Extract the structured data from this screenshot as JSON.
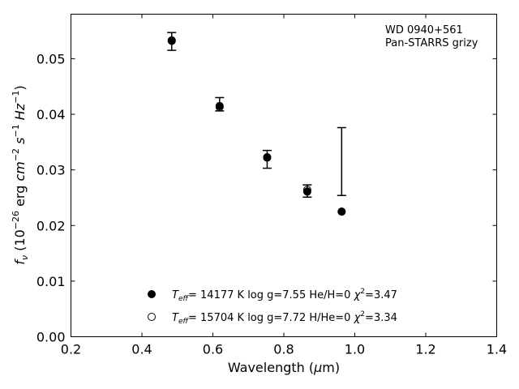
{
  "chart_data": {
    "type": "scatter",
    "annotation_lines": [
      "WD 0940+561",
      "Pan-STARRS grizy"
    ],
    "xlabel": "Wavelength (μm)",
    "ylabel": "f_ν (10^-26 erg cm^-2 s^-1 Hz^-1)",
    "xlim": [
      0.2,
      1.4
    ],
    "ylim": [
      0.0,
      0.058
    ],
    "xticks": [
      0.2,
      0.4,
      0.6,
      0.8,
      1.0,
      1.2,
      1.4
    ],
    "xtick_labels": [
      "0.2",
      "0.4",
      "0.6",
      "0.8",
      "1.0",
      "1.2",
      "1.4"
    ],
    "yticks": [
      0.0,
      0.01,
      0.02,
      0.03,
      0.04,
      0.05
    ],
    "ytick_labels": [
      "0.00",
      "0.01",
      "0.02",
      "0.03",
      "0.04",
      "0.05"
    ],
    "grid": false,
    "legend_position": "bottom-center",
    "observed": {
      "x": [
        0.484,
        0.619,
        0.753,
        0.866,
        0.963
      ],
      "y": [
        0.0531,
        0.0418,
        0.0319,
        0.0262,
        0.0315
      ],
      "yerr": [
        0.0016,
        0.0012,
        0.0016,
        0.0011,
        0.0061
      ]
    },
    "series": [
      {
        "name": "T_eff= 14177 K  log g=7.55  He/H=0  χ²=3.47",
        "label_parts": {
          "teff": "14177",
          "rest": "log g=7.55  He/H=0",
          "chi2": "3.47"
        },
        "marker": "filled-circle",
        "x": [
          0.484,
          0.619,
          0.753,
          0.866,
          0.963
        ],
        "y": [
          0.0532,
          0.0415,
          0.0322,
          0.0261,
          0.0225
        ]
      },
      {
        "name": "T_eff= 15704 K  log g=7.72  H/He=0  χ²=3.34",
        "label_parts": {
          "teff": "15704",
          "rest": "log g=7.72  H/He=0",
          "chi2": "3.34"
        },
        "marker": "open-circle",
        "x": [
          0.484,
          0.619,
          0.753,
          0.866,
          0.963
        ],
        "y": [
          0.0533,
          0.0413,
          0.0323,
          0.0264,
          0.0225
        ]
      }
    ],
    "colors": {
      "axis": "#000000",
      "marker": "#000000",
      "background": "#ffffff"
    }
  }
}
